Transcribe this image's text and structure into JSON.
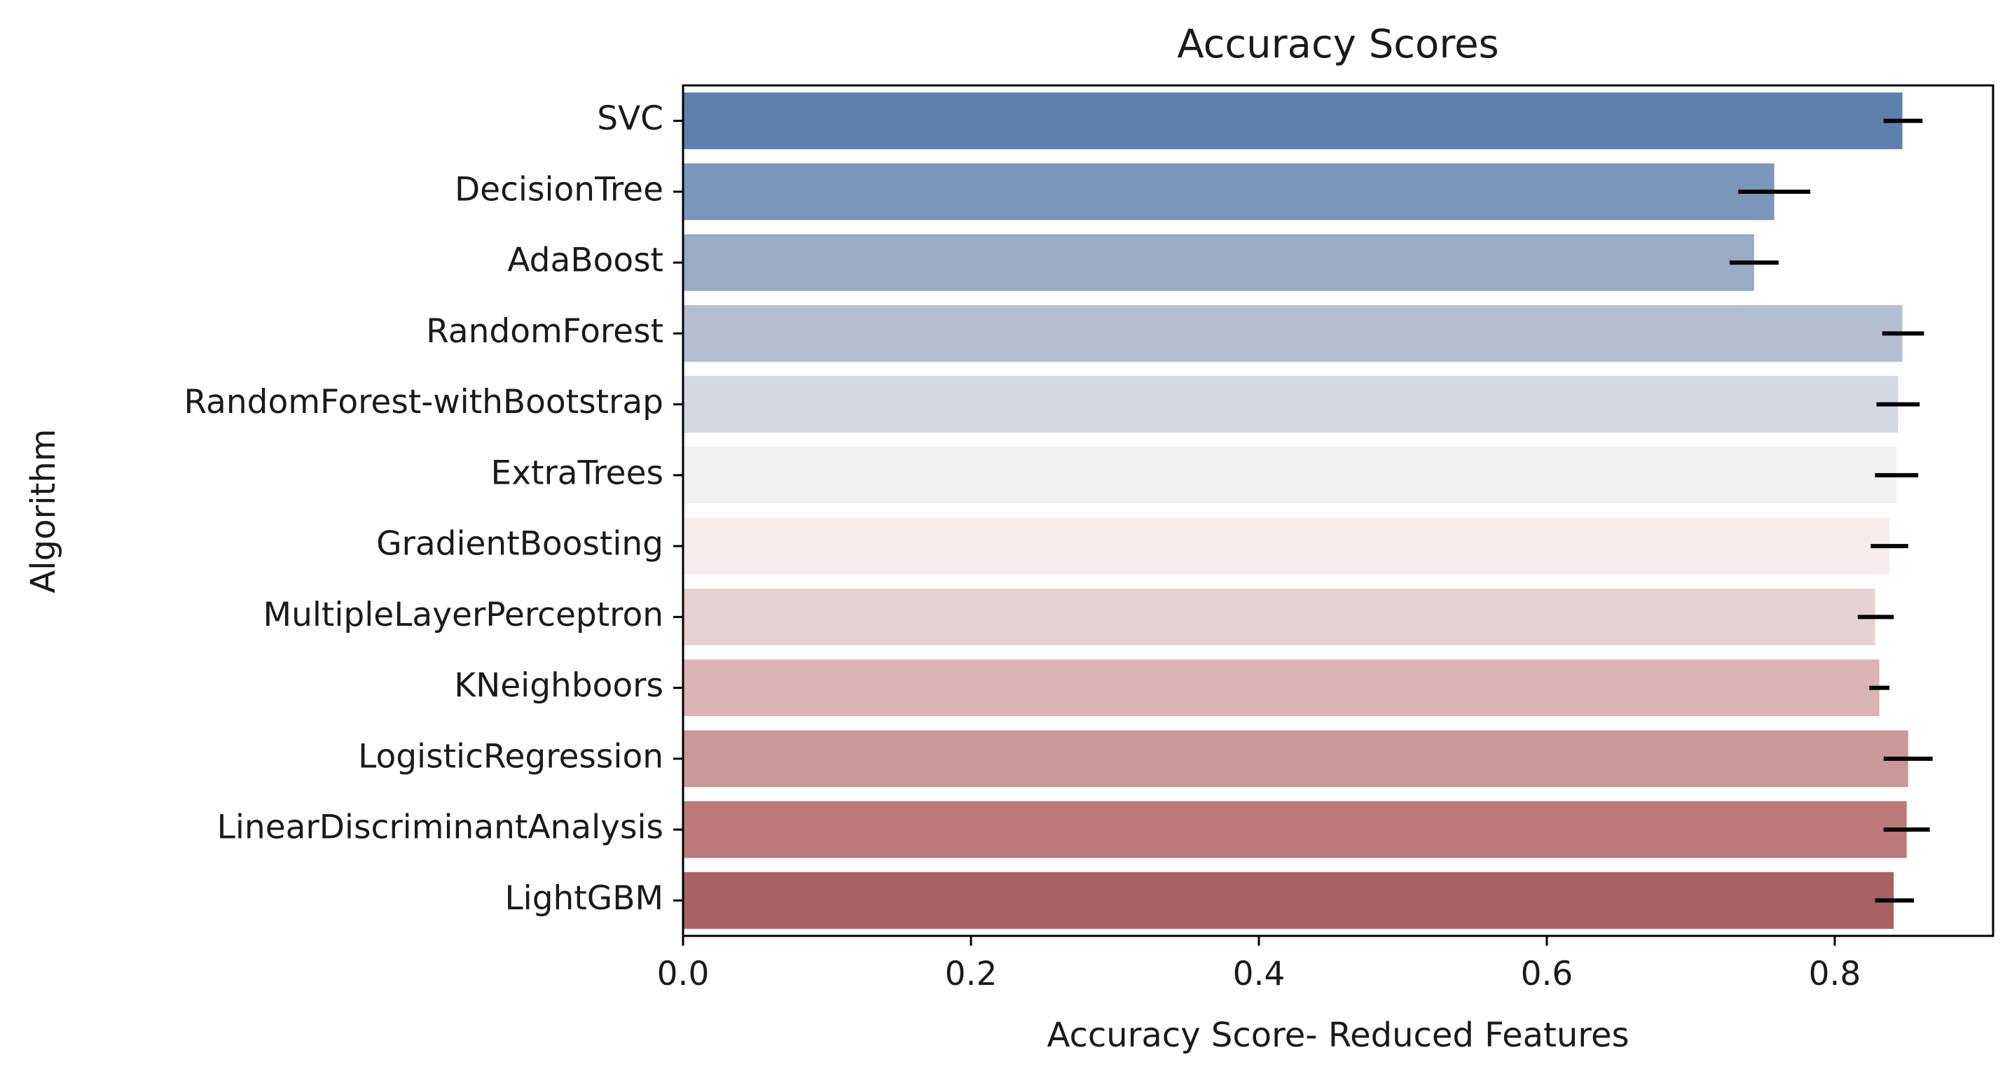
{
  "chart_data": {
    "type": "bar",
    "orientation": "horizontal",
    "title": "Accuracy Scores",
    "xlabel": "Accuracy Score- Reduced Features",
    "ylabel": "Algorithm",
    "xlim": [
      0.0,
      0.91
    ],
    "xticks": [
      0.0,
      0.2,
      0.4,
      0.6,
      0.8
    ],
    "xtick_labels": [
      "0.0",
      "0.2",
      "0.4",
      "0.6",
      "0.8"
    ],
    "grid": false,
    "categories": [
      "SVC",
      "DecisionTree",
      "AdaBoost",
      "RandomForest",
      "RandomForest-withBootstrap",
      "ExtraTrees",
      "GradientBoosting",
      "MultipleLayerPerceptron",
      "KNeighboors",
      "LogisticRegression",
      "LinearDiscriminantAnalysis",
      "LightGBM"
    ],
    "values": [
      0.847,
      0.758,
      0.744,
      0.847,
      0.844,
      0.843,
      0.838,
      0.828,
      0.831,
      0.851,
      0.85,
      0.841
    ],
    "error_bars": [
      [
        0.834,
        0.861
      ],
      [
        0.733,
        0.783
      ],
      [
        0.727,
        0.761
      ],
      [
        0.833,
        0.862
      ],
      [
        0.829,
        0.859
      ],
      [
        0.828,
        0.858
      ],
      [
        0.825,
        0.851
      ],
      [
        0.816,
        0.841
      ],
      [
        0.824,
        0.838
      ],
      [
        0.834,
        0.868
      ],
      [
        0.834,
        0.866
      ],
      [
        0.828,
        0.855
      ]
    ],
    "colors": [
      "#5f80ad",
      "#7b96b8",
      "#99aac3",
      "#b3bfd1",
      "#d4d8e2",
      "#f1f0f2",
      "#f7ecec",
      "#e7d1d2",
      "#dbb4b4",
      "#c99897",
      "#bc7a7b",
      "#a86163"
    ],
    "error_color": "#000000"
  }
}
